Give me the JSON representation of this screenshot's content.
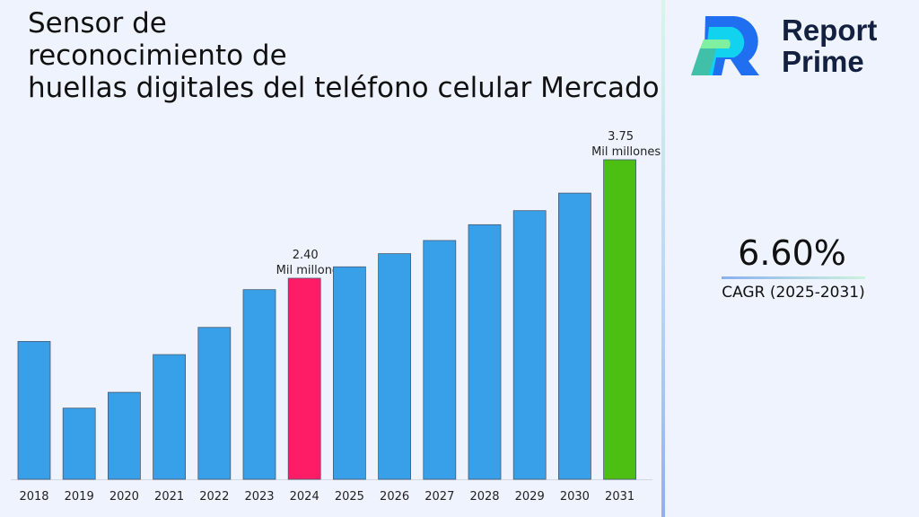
{
  "title": "Sensor de reconocimiento de huellas digitales del teléfono celular Mercado",
  "title_lines": [
    "Sensor de",
    "reconocimiento de",
    "huellas digitales del teléfono celular Mercado"
  ],
  "logo": {
    "line1": "Report",
    "line2": "Prime"
  },
  "cagr": {
    "value": "6.60%",
    "label": "CAGR (2025-2031)"
  },
  "colors": {
    "default_bar": "#38a0e8",
    "highlight_start": "#ff1c67",
    "highlight_end": "#4cbf12"
  },
  "chart_data": {
    "type": "bar",
    "categories": [
      "2018",
      "2019",
      "2020",
      "2021",
      "2022",
      "2023",
      "2024",
      "2025",
      "2026",
      "2027",
      "2028",
      "2029",
      "2030",
      "2031"
    ],
    "values": [
      1.68,
      0.92,
      1.1,
      1.53,
      1.84,
      2.27,
      2.4,
      2.53,
      2.68,
      2.83,
      3.01,
      3.17,
      3.37,
      3.75
    ],
    "unit": "Mil millones",
    "data_labels": [
      {
        "category": "2024",
        "value": "2.40",
        "unit": "Mil millones"
      },
      {
        "category": "2031",
        "value": "3.75",
        "unit": "Mil millones"
      }
    ],
    "highlight": {
      "2024": "#ff1c67",
      "2031": "#4cbf12"
    },
    "xlabel": "",
    "ylabel": "",
    "grid": false,
    "yaxis_visible": false
  }
}
